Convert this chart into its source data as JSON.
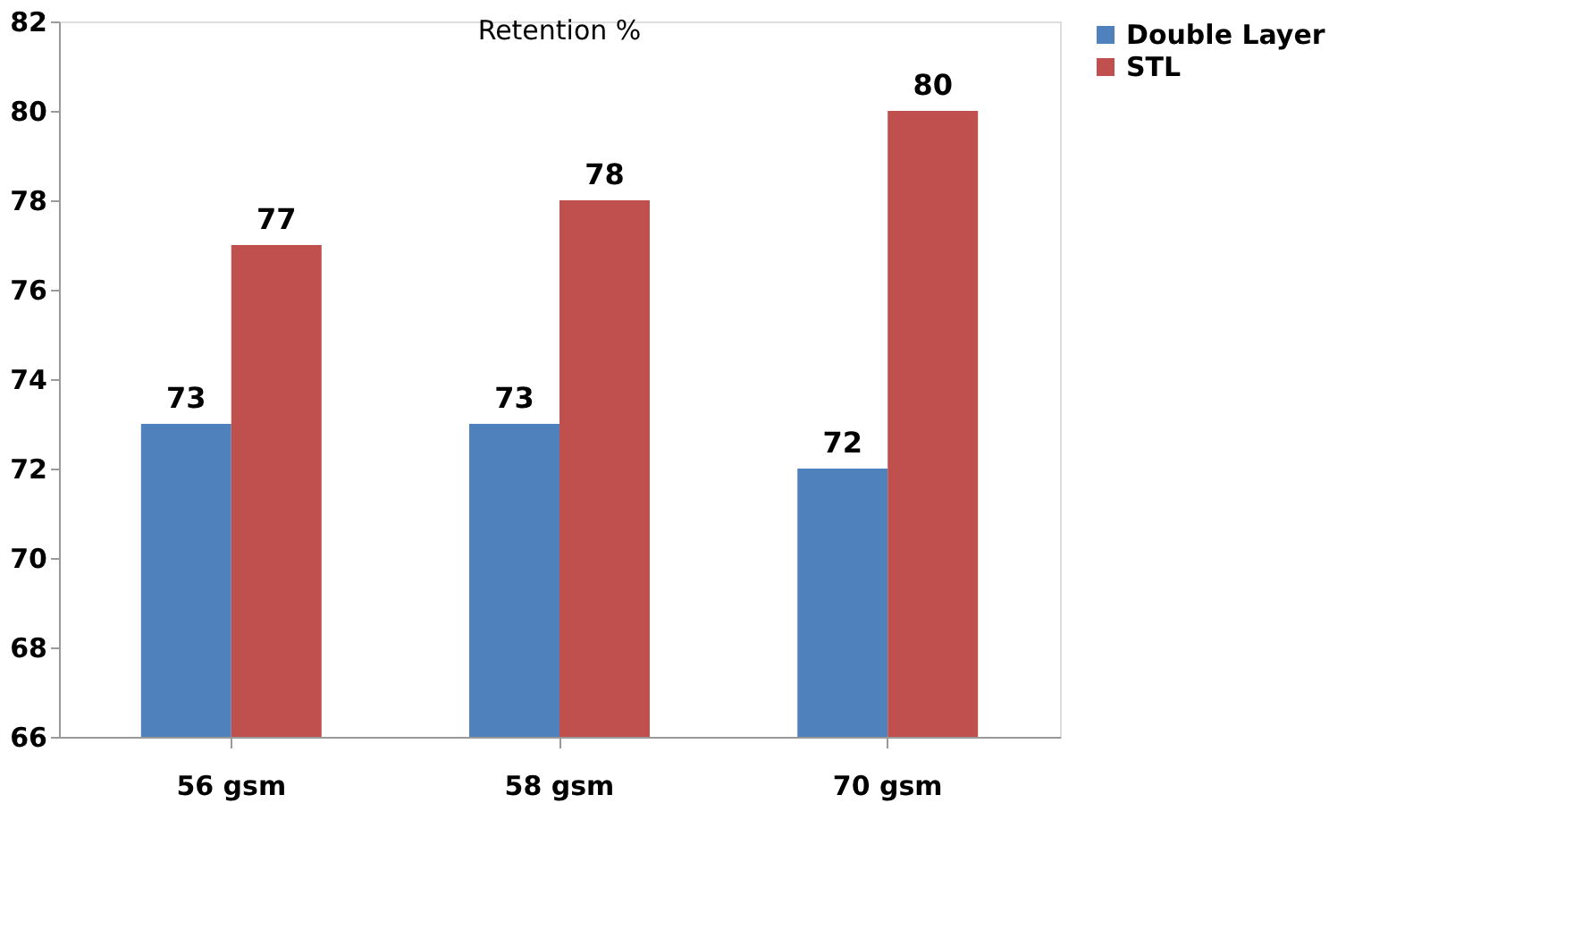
{
  "chart_data": {
    "type": "bar",
    "title": "Retention %",
    "categories": [
      "56 gsm",
      "58 gsm",
      "70 gsm"
    ],
    "series": [
      {
        "name": "Double Layer",
        "color": "#4f81bd",
        "values": [
          73,
          73,
          72
        ]
      },
      {
        "name": "STL",
        "color": "#c0504d",
        "values": [
          77,
          78,
          80
        ]
      }
    ],
    "ylim": [
      66,
      82
    ],
    "yticks": [
      66,
      68,
      70,
      72,
      74,
      76,
      78,
      80,
      82
    ],
    "grid": false,
    "legend": "right",
    "data_labels": true
  }
}
